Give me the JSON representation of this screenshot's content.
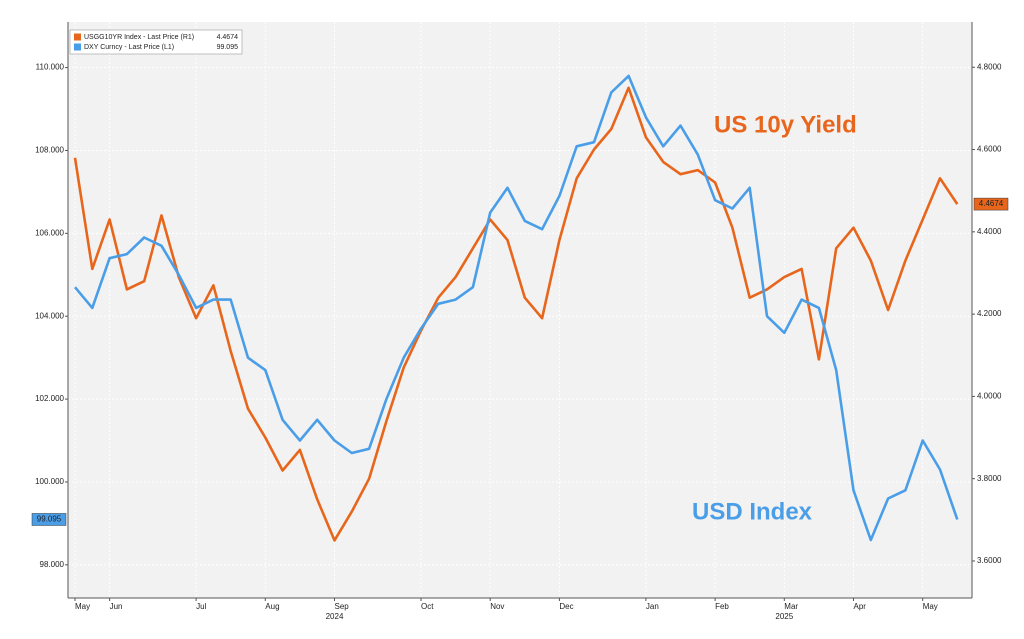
{
  "chart_data": {
    "type": "line",
    "categories": [
      "May",
      null,
      "Jun",
      null,
      null,
      null,
      null,
      "Jul",
      null,
      null,
      null,
      "Aug",
      null,
      null,
      null,
      "Sep",
      null,
      null,
      null,
      null,
      "Oct",
      null,
      null,
      null,
      "Nov",
      null,
      null,
      null,
      "Dec",
      null,
      null,
      null,
      null,
      "Jan",
      null,
      null,
      null,
      "Feb",
      null,
      null,
      null,
      "Mar",
      null,
      null,
      null,
      "Apr",
      null,
      null,
      null,
      "May",
      null,
      null
    ],
    "year_labels": [
      {
        "label": "2024",
        "category": 15
      },
      {
        "label": "2025",
        "category": 41
      }
    ],
    "series": [
      {
        "name": "USGG10YR Index - Last Price (R1)",
        "color": "#e8661c",
        "axis": "y2",
        "values": [
          4.58,
          4.31,
          4.43,
          4.26,
          4.28,
          4.44,
          4.29,
          4.19,
          4.27,
          4.11,
          3.97,
          3.9,
          3.82,
          3.87,
          3.75,
          3.65,
          3.72,
          3.8,
          3.94,
          4.07,
          4.16,
          4.24,
          4.29,
          4.36,
          4.43,
          4.38,
          4.24,
          4.19,
          4.38,
          4.53,
          4.6,
          4.65,
          4.75,
          4.63,
          4.57,
          4.54,
          4.55,
          4.52,
          4.41,
          4.24,
          4.26,
          4.29,
          4.31,
          4.09,
          4.36,
          4.41,
          4.33,
          4.21,
          4.33,
          4.43,
          4.53,
          4.4674
        ]
      },
      {
        "name": "DXY Curncy - Last Price (L1)",
        "color": "#4a9ee8",
        "values": [
          104.7,
          104.2,
          105.4,
          105.5,
          105.9,
          105.7,
          105.0,
          104.2,
          104.4,
          104.4,
          103.0,
          102.7,
          101.5,
          101.0,
          101.5,
          101.0,
          100.7,
          100.8,
          102.0,
          103.0,
          103.7,
          104.3,
          104.4,
          104.7,
          106.5,
          107.1,
          106.3,
          106.1,
          106.9,
          108.1,
          108.2,
          109.4,
          109.8,
          108.8,
          108.1,
          108.6,
          107.9,
          106.8,
          106.6,
          107.1,
          104.0,
          103.6,
          104.4,
          104.2,
          102.7,
          99.8,
          98.6,
          99.6,
          99.8,
          101.0,
          100.3,
          99.095
        ]
      }
    ],
    "ylim": [
      97.2,
      111.1
    ],
    "yticks": [
      {
        "value": 98,
        "label": "98.000"
      },
      {
        "value": 100,
        "label": "100.000"
      },
      {
        "value": 102,
        "label": "102.000"
      },
      {
        "value": 104,
        "label": "104.000"
      },
      {
        "value": 106,
        "label": "106.000"
      },
      {
        "value": 108,
        "label": "108.000"
      },
      {
        "value": 110,
        "label": "110.000"
      }
    ],
    "y2lim": [
      3.51,
      4.91
    ],
    "y2ticks": [
      {
        "value": 3.6,
        "label": "3.6000"
      },
      {
        "value": 3.8,
        "label": "3.8000"
      },
      {
        "value": 4.0,
        "label": "4.0000"
      },
      {
        "value": 4.2,
        "label": "4.2000"
      },
      {
        "value": 4.4,
        "label": "4.4000"
      },
      {
        "value": 4.6,
        "label": "4.6000"
      },
      {
        "value": 4.8,
        "label": "4.8000"
      }
    ],
    "grid": true,
    "annotations": [
      {
        "text": "US 10y Yield",
        "series": 0
      },
      {
        "text": "USD Index",
        "series": 1
      }
    ]
  }
}
